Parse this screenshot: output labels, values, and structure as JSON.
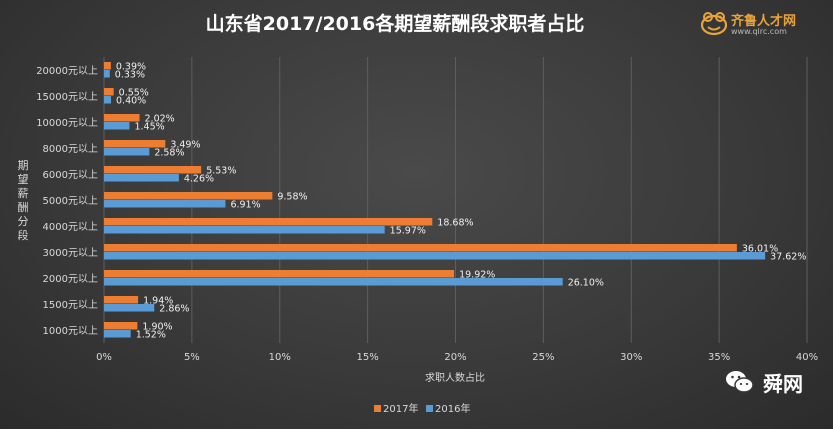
{
  "branding": {
    "logo_text": "齐鲁人才网",
    "logo_url": "www.qlrc.com",
    "watermark": "舜网"
  },
  "colors": {
    "series_2017": "#ed7d31",
    "series_2016": "#5b9bd5",
    "logo_accent": "#e8a33a"
  },
  "chart_data": {
    "type": "bar",
    "orientation": "horizontal",
    "title": "山东省2017/2016各期望薪酬段求职者占比",
    "xlabel": "求职人数占比",
    "ylabel": "期望薪酬分段",
    "xlim": [
      0,
      40
    ],
    "xticks": [
      "0%",
      "5%",
      "10%",
      "15%",
      "20%",
      "25%",
      "30%",
      "35%",
      "40%"
    ],
    "grid": true,
    "legend_position": "bottom",
    "categories": [
      "20000元以上",
      "15000元以上",
      "10000元以上",
      "8000元以上",
      "6000元以上",
      "5000元以上",
      "4000元以上",
      "3000元以上",
      "2000元以上",
      "1500元以上",
      "1000元以上"
    ],
    "series": [
      {
        "name": "2017年",
        "values": [
          0.39,
          0.55,
          2.02,
          3.49,
          5.53,
          9.58,
          18.68,
          36.01,
          19.92,
          1.94,
          1.9
        ],
        "labels": [
          "0.39%",
          "0.55%",
          "2.02%",
          "3.49%",
          "5.53%",
          "9.58%",
          "18.68%",
          "36.01%",
          "19.92%",
          "1.94%",
          "1.90%"
        ]
      },
      {
        "name": "2016年",
        "values": [
          0.33,
          0.4,
          1.45,
          2.58,
          4.26,
          6.91,
          15.97,
          37.62,
          26.1,
          2.86,
          1.52
        ],
        "labels": [
          "0.33%",
          "0.40%",
          "1.45%",
          "2.58%",
          "4.26%",
          "6.91%",
          "15.97%",
          "37.62%",
          "26.10%",
          "2.86%",
          "1.52%"
        ]
      }
    ]
  }
}
